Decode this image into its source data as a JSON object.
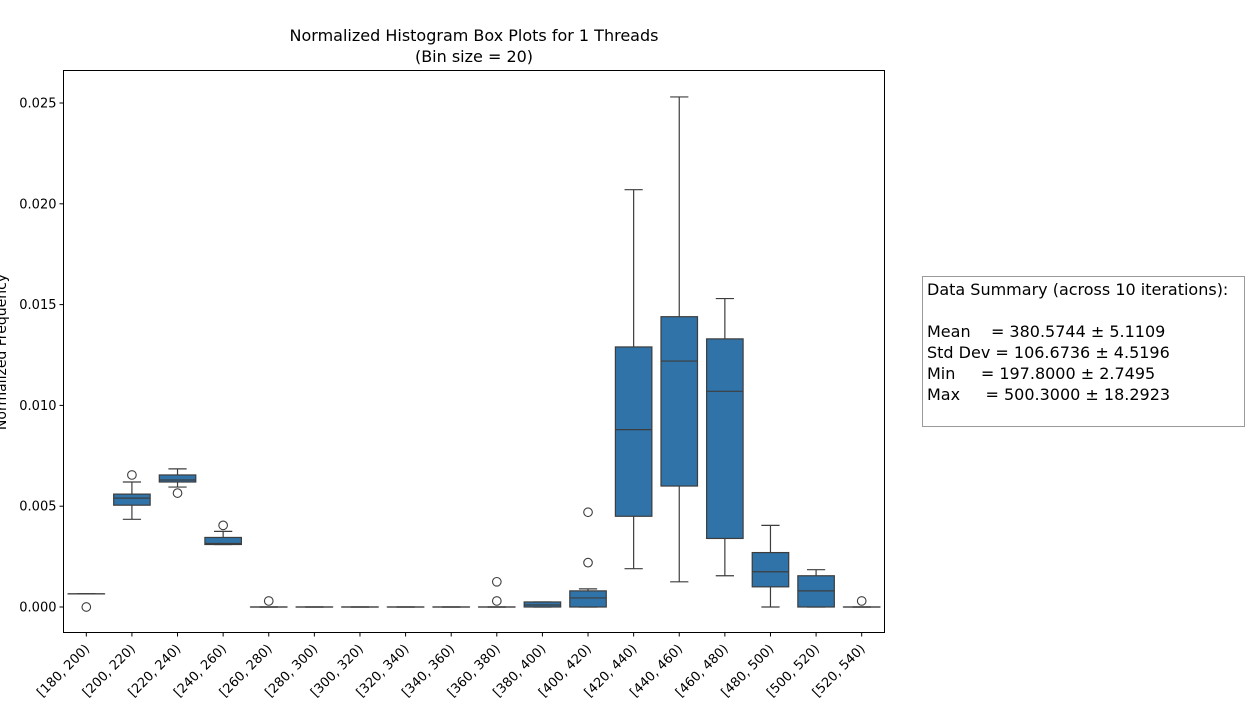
{
  "chart_data": {
    "type": "box",
    "title_line1": "Normalized Histogram Box Plots for 1 Threads",
    "title_line2": "(Bin size = 20)",
    "xlabel": "",
    "ylabel": "Normalized Frequency",
    "ylim": [
      -0.0013,
      0.0266
    ],
    "yticks": [
      "0.000",
      "0.005",
      "0.010",
      "0.015",
      "0.020",
      "0.025"
    ],
    "box_color": "#2f73a8",
    "grid": false,
    "categories": [
      "[180, 200)",
      "[200, 220)",
      "[220, 240)",
      "[240, 260)",
      "[260, 280)",
      "[280, 300)",
      "[300, 320)",
      "[320, 340)",
      "[340, 360)",
      "[360, 380)",
      "[380, 400)",
      "[400, 420)",
      "[420, 440)",
      "[440, 460)",
      "[460, 480)",
      "[480, 500)",
      "[500, 520)",
      "[520, 540)"
    ],
    "boxes": [
      {
        "whislo": 0.00065,
        "q1": 0.00065,
        "med": 0.00065,
        "q3": 0.00065,
        "whishi": 0.00065,
        "fliers": [
          0.0
        ]
      },
      {
        "whislo": 0.00435,
        "q1": 0.00505,
        "med": 0.0054,
        "q3": 0.0056,
        "whishi": 0.0062,
        "fliers": [
          0.00655
        ]
      },
      {
        "whislo": 0.00595,
        "q1": 0.0062,
        "med": 0.0063,
        "q3": 0.00655,
        "whishi": 0.00685,
        "fliers": [
          0.00565
        ]
      },
      {
        "whislo": 0.0031,
        "q1": 0.0031,
        "med": 0.00315,
        "q3": 0.00345,
        "whishi": 0.00375,
        "fliers": [
          0.00405
        ]
      },
      {
        "whislo": 0.0,
        "q1": 0.0,
        "med": 0.0,
        "q3": 0.0,
        "whishi": 0.0,
        "fliers": [
          0.0003
        ]
      },
      {
        "whislo": 0.0,
        "q1": 0.0,
        "med": 0.0,
        "q3": 0.0,
        "whishi": 0.0,
        "fliers": []
      },
      {
        "whislo": 0.0,
        "q1": 0.0,
        "med": 0.0,
        "q3": 0.0,
        "whishi": 0.0,
        "fliers": []
      },
      {
        "whislo": 0.0,
        "q1": 0.0,
        "med": 0.0,
        "q3": 0.0,
        "whishi": 0.0,
        "fliers": []
      },
      {
        "whislo": 0.0,
        "q1": 0.0,
        "med": 0.0,
        "q3": 0.0,
        "whishi": 0.0,
        "fliers": []
      },
      {
        "whislo": 0.0,
        "q1": 0.0,
        "med": 0.0,
        "q3": 0.0,
        "whishi": 0.0,
        "fliers": [
          0.0003,
          0.00125
        ]
      },
      {
        "whislo": 0.0,
        "q1": 0.0,
        "med": 0.0001,
        "q3": 0.00025,
        "whishi": 0.00025,
        "fliers": []
      },
      {
        "whislo": 0.0,
        "q1": 0.0,
        "med": 0.00045,
        "q3": 0.0008,
        "whishi": 0.0009,
        "fliers": [
          0.0022,
          0.0047
        ]
      },
      {
        "whislo": 0.0019,
        "q1": 0.0045,
        "med": 0.0088,
        "q3": 0.0129,
        "whishi": 0.0207,
        "fliers": []
      },
      {
        "whislo": 0.00125,
        "q1": 0.006,
        "med": 0.0122,
        "q3": 0.0144,
        "whishi": 0.0253,
        "fliers": []
      },
      {
        "whislo": 0.00155,
        "q1": 0.0034,
        "med": 0.0107,
        "q3": 0.0133,
        "whishi": 0.0153,
        "fliers": []
      },
      {
        "whislo": 0.0,
        "q1": 0.001,
        "med": 0.00175,
        "q3": 0.0027,
        "whishi": 0.00405,
        "fliers": []
      },
      {
        "whislo": 0.0,
        "q1": 0.0,
        "med": 0.0008,
        "q3": 0.00155,
        "whishi": 0.00185,
        "fliers": []
      },
      {
        "whislo": 0.0,
        "q1": 0.0,
        "med": 0.0,
        "q3": 0.0,
        "whishi": 0.0,
        "fliers": [
          0.0003
        ]
      }
    ]
  },
  "summary": {
    "title": "Data Summary (across 10 iterations):",
    "mean": "Mean    = 380.5744 ± 5.1109",
    "std": "Std Dev = 106.6736 ± 4.5196",
    "min": "Min     = 197.8000 ± 2.7495",
    "max": "Max     = 500.3000 ± 18.2923"
  }
}
